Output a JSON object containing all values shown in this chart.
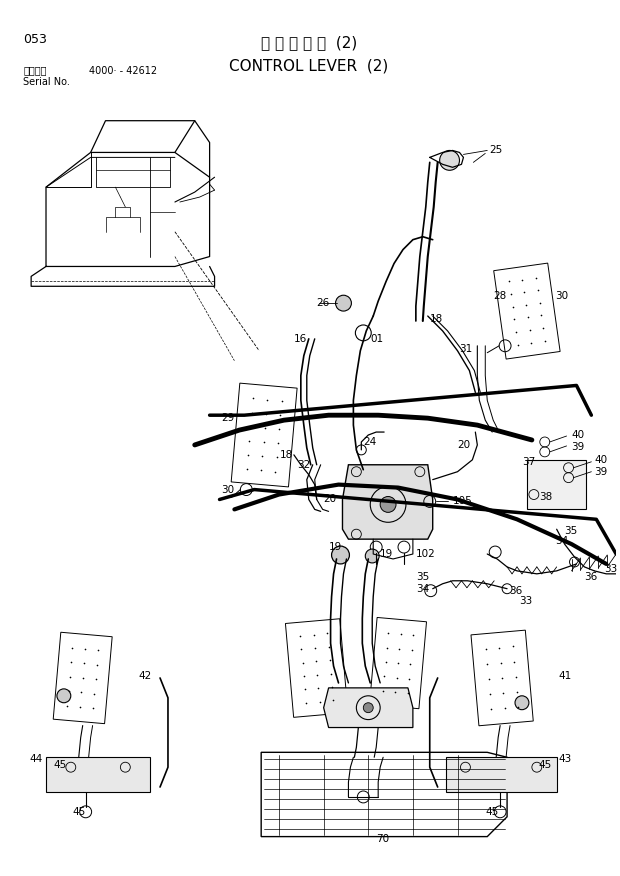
{
  "title_japanese": "操 作 レ バ ー  (2)",
  "title_english": "CONTROL LEVER  (2)",
  "page_number": "053",
  "serial_label": "適用号機",
  "serial_label2": "Serial No.",
  "serial_range": "4000· - 42612",
  "bg_color": "#ffffff",
  "line_color": "#000000",
  "text_color": "#000000",
  "fig_width": 6.2,
  "fig_height": 8.76,
  "dpi": 100
}
